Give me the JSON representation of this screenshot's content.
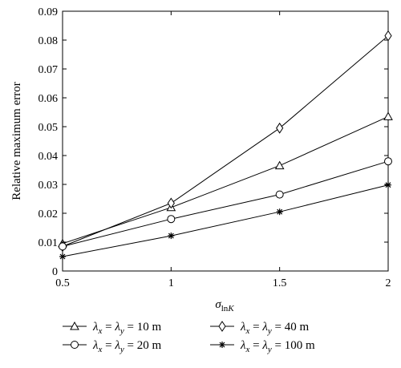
{
  "chart_data": {
    "type": "line",
    "title": "",
    "xlabel": {
      "base": "σ",
      "sub": "ln",
      "sub_italic": "K"
    },
    "ylabel": "Relative maximum error",
    "xlim": [
      0.5,
      2
    ],
    "ylim": [
      0,
      0.09
    ],
    "x_ticks": [
      0.5,
      1,
      1.5,
      2
    ],
    "x_tick_labels": [
      "0.5",
      "1",
      "1.5",
      "2"
    ],
    "y_ticks": [
      0,
      0.01,
      0.02,
      0.03,
      0.04,
      0.05,
      0.06,
      0.07,
      0.08,
      0.09
    ],
    "y_tick_labels": [
      "0",
      "0.01",
      "0.02",
      "0.03",
      "0.04",
      "0.05",
      "0.06",
      "0.07",
      "0.08",
      "0.09"
    ],
    "grid": false,
    "legend_placement": "bottom",
    "x": [
      0.5,
      1,
      1.5,
      2
    ],
    "series": [
      {
        "marker": "triangle",
        "legend": {
          "lx": "λ",
          "sx": "x",
          "ly": "λ",
          "sy": "y",
          "value": "10 m"
        },
        "values": [
          0.0095,
          0.022,
          0.0365,
          0.0535
        ]
      },
      {
        "marker": "diamond",
        "legend": {
          "lx": "λ",
          "sx": "x",
          "ly": "λ",
          "sy": "y",
          "value": "40 m"
        },
        "values": [
          0.0085,
          0.0235,
          0.0495,
          0.0815
        ]
      },
      {
        "marker": "circle",
        "legend": {
          "lx": "λ",
          "sx": "x",
          "ly": "λ",
          "sy": "y",
          "value": "20 m"
        },
        "values": [
          0.0085,
          0.018,
          0.0265,
          0.038
        ]
      },
      {
        "marker": "star",
        "legend": {
          "lx": "λ",
          "sx": "x",
          "ly": "λ",
          "sy": "y",
          "value": "100 m"
        },
        "values": [
          0.005,
          0.0122,
          0.0205,
          0.0298
        ]
      }
    ],
    "line_color": "#000000"
  }
}
